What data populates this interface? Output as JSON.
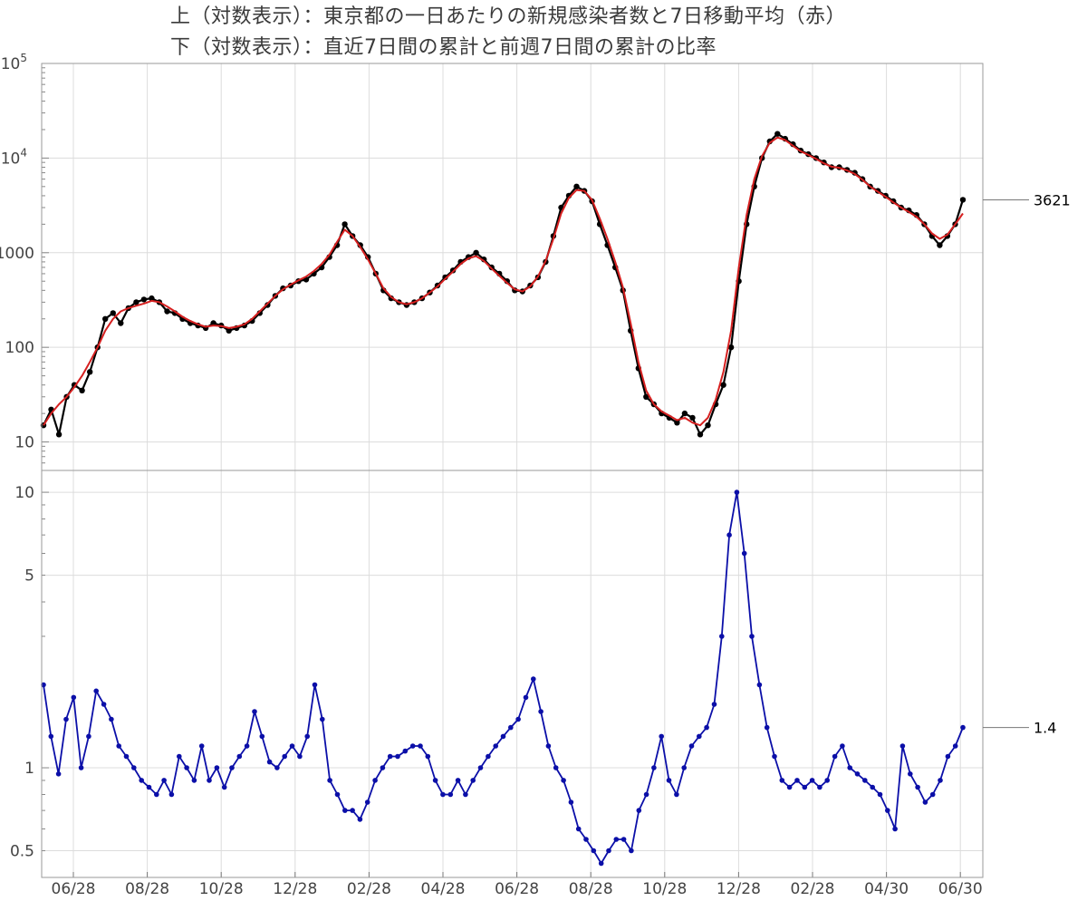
{
  "titles": {
    "line1": "上（対数表示）：東京都の一日あたりの新規感染者数と7日移動平均（赤）",
    "line2": "下（対数表示）：直近7日間の累計と前週7日間の累計の比率"
  },
  "colors": {
    "daily": "#000000",
    "moving_average": "#d62020",
    "ratio": "#0b0fa8",
    "grid": "#dcdcdc",
    "frame": "#9a9a9a"
  },
  "chart_data": [
    {
      "type": "line",
      "scale": "log",
      "ylim": [
        5,
        100000
      ],
      "x_ticks": [
        "06/28",
        "08/28",
        "10/28",
        "12/28",
        "02/28",
        "04/28",
        "06/28",
        "08/28",
        "10/28",
        "12/28",
        "02/28",
        "04/30",
        "06/30"
      ],
      "y_ticks": [
        {
          "value": 10,
          "label": "10"
        },
        {
          "value": 100,
          "label": "100"
        },
        {
          "value": 1000,
          "label": "1000"
        },
        {
          "value": 10000,
          "label": "10",
          "exp": "4"
        },
        {
          "value": 100000,
          "label": "10",
          "exp": "5"
        }
      ],
      "series": [
        {
          "key": "daily",
          "style": "line+points",
          "values": [
            15,
            22,
            12,
            30,
            40,
            35,
            55,
            100,
            200,
            230,
            180,
            260,
            300,
            320,
            330,
            300,
            240,
            230,
            200,
            180,
            170,
            160,
            180,
            170,
            150,
            160,
            170,
            190,
            230,
            280,
            350,
            420,
            450,
            500,
            520,
            600,
            700,
            900,
            1200,
            2000,
            1500,
            1200,
            900,
            600,
            400,
            330,
            300,
            280,
            300,
            330,
            380,
            450,
            550,
            650,
            800,
            900,
            1000,
            850,
            700,
            600,
            500,
            400,
            390,
            450,
            550,
            800,
            1500,
            3000,
            4000,
            5000,
            4500,
            3500,
            2000,
            1200,
            700,
            400,
            150,
            60,
            30,
            25,
            20,
            18,
            16,
            20,
            18,
            12,
            15,
            25,
            40,
            100,
            500,
            2000,
            5000,
            10000,
            15000,
            18000,
            16000,
            14000,
            12000,
            11000,
            10000,
            9000,
            8000,
            8000,
            7500,
            7000,
            6000,
            5000,
            4500,
            4000,
            3500,
            3000,
            2800,
            2500,
            2000,
            1500,
            1200,
            1500,
            2000,
            3621
          ]
        },
        {
          "key": "moving_average",
          "style": "line",
          "values": [
            15,
            20,
            25,
            30,
            38,
            50,
            70,
            100,
            150,
            200,
            240,
            260,
            275,
            290,
            310,
            300,
            270,
            240,
            210,
            190,
            175,
            165,
            170,
            168,
            160,
            165,
            175,
            200,
            240,
            290,
            350,
            410,
            460,
            510,
            560,
            640,
            760,
            950,
            1300,
            1750,
            1500,
            1150,
            850,
            600,
            420,
            340,
            300,
            285,
            300,
            330,
            380,
            440,
            530,
            630,
            760,
            870,
            920,
            820,
            680,
            570,
            480,
            410,
            390,
            440,
            560,
            820,
            1400,
            2600,
            3800,
            4600,
            4500,
            3600,
            2300,
            1400,
            800,
            430,
            180,
            70,
            35,
            25,
            21,
            19,
            17,
            18,
            16,
            15,
            18,
            28,
            55,
            150,
            700,
            2500,
            6000,
            10500,
            14500,
            16500,
            15500,
            13500,
            11800,
            10800,
            9800,
            8800,
            8100,
            7900,
            7400,
            6800,
            5900,
            5000,
            4400,
            3900,
            3400,
            3000,
            2700,
            2400,
            2000,
            1600,
            1400,
            1550,
            2000,
            2600
          ]
        }
      ]
    },
    {
      "type": "line",
      "scale": "log",
      "ylim": [
        0.4,
        12
      ],
      "x_ticks": [
        "06/28",
        "08/28",
        "10/28",
        "12/28",
        "02/28",
        "04/28",
        "06/28",
        "08/28",
        "10/28",
        "12/28",
        "02/28",
        "04/30",
        "06/30"
      ],
      "y_ticks": [
        {
          "value": 0.5,
          "label": "0.5"
        },
        {
          "value": 1,
          "label": "1"
        },
        {
          "value": 5,
          "label": "5"
        },
        {
          "value": 10,
          "label": "10"
        }
      ],
      "series": [
        {
          "key": "ratio",
          "style": "line+points",
          "values": [
            2.0,
            1.3,
            0.95,
            1.5,
            1.8,
            1.0,
            1.3,
            1.9,
            1.7,
            1.5,
            1.2,
            1.1,
            1.0,
            0.9,
            0.85,
            0.8,
            0.9,
            0.8,
            1.1,
            1.0,
            0.9,
            1.2,
            0.9,
            1.0,
            0.85,
            1.0,
            1.1,
            1.2,
            1.6,
            1.3,
            1.05,
            1.0,
            1.1,
            1.2,
            1.1,
            1.3,
            2.0,
            1.5,
            0.9,
            0.8,
            0.7,
            0.7,
            0.65,
            0.75,
            0.9,
            1.0,
            1.1,
            1.1,
            1.15,
            1.2,
            1.2,
            1.1,
            0.9,
            0.8,
            0.8,
            0.9,
            0.8,
            0.9,
            1.0,
            1.1,
            1.2,
            1.3,
            1.4,
            1.5,
            1.8,
            2.1,
            1.6,
            1.2,
            1.0,
            0.9,
            0.75,
            0.6,
            0.55,
            0.5,
            0.45,
            0.5,
            0.55,
            0.55,
            0.5,
            0.7,
            0.8,
            1.0,
            1.3,
            0.9,
            0.8,
            1.0,
            1.2,
            1.3,
            1.4,
            1.7,
            3.0,
            7.0,
            10.0,
            6.0,
            3.0,
            2.0,
            1.4,
            1.1,
            0.9,
            0.85,
            0.9,
            0.85,
            0.9,
            0.85,
            0.9,
            1.1,
            1.2,
            1.0,
            0.95,
            0.9,
            0.85,
            0.8,
            0.7,
            0.6,
            1.2,
            0.95,
            0.85,
            0.75,
            0.8,
            0.9,
            1.1,
            1.2,
            1.4
          ]
        }
      ]
    }
  ],
  "callouts": {
    "top_value": "3621",
    "bottom_value": "1.4"
  }
}
